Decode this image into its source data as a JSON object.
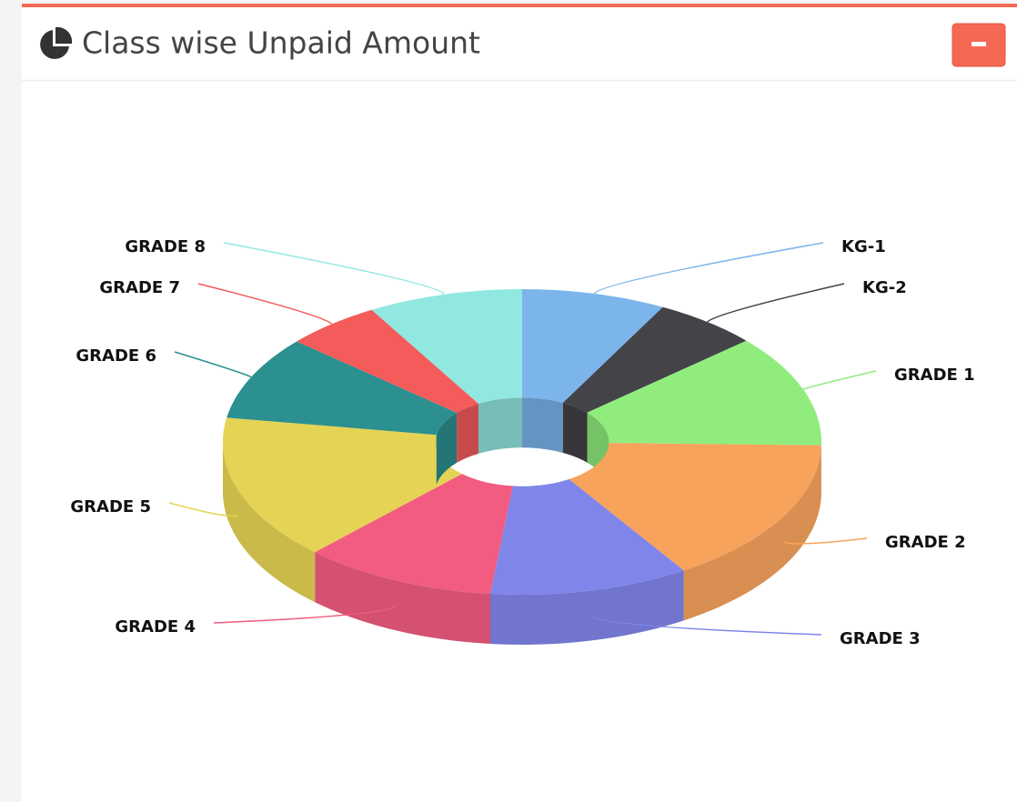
{
  "title": "Class wise Unpaid Amount",
  "chart_data": {
    "type": "donut3d",
    "categories": [
      "KG-1",
      "KG-2",
      "GRADE 1",
      "GRADE 2",
      "GRADE 3",
      "GRADE 4",
      "GRADE 5",
      "GRADE 6",
      "GRADE 7",
      "GRADE 8"
    ],
    "values": [
      7.8,
      5.7,
      11.9,
      15.6,
      10.8,
      10.5,
      15.4,
      8.9,
      5.2,
      8.4
    ],
    "colors": [
      "#7cb5ec",
      "#434348",
      "#90ed7d",
      "#f7a35c",
      "#8085e9",
      "#f15c80",
      "#e4d354",
      "#2b908f",
      "#f45b5b",
      "#91e8e1"
    ]
  }
}
